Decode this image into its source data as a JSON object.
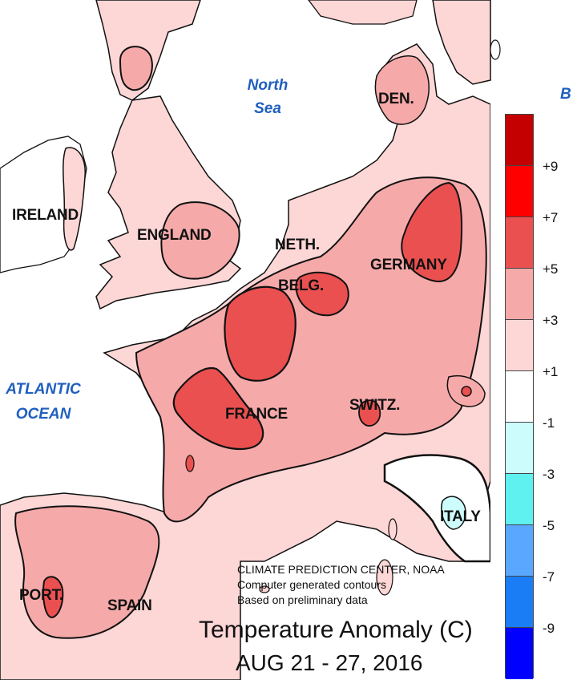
{
  "map": {
    "seas": {
      "north_sea_line1": "North",
      "north_sea_line2": "Sea",
      "atlantic_line1": "ATLANTIC",
      "atlantic_line2": "OCEAN",
      "corner_fragment": "B"
    },
    "countries": {
      "ireland": "IRELAND",
      "england": "ENGLAND",
      "neth": "NETH.",
      "belg": "BELG.",
      "germany": "GERMANY",
      "den": "DEN.",
      "france": "FRANCE",
      "switz": "SWITZ.",
      "italy": "ITALY",
      "port": "PORT.",
      "spain": "SPAIN"
    },
    "credit": {
      "line1": "CLIMATE PREDICTION CENTER, NOAA",
      "line2": "Computer generated contours",
      "line3": "Based on preliminary data"
    },
    "title": "Temperature Anomaly (C)",
    "date": "AUG 21 - 27, 2016",
    "colors": {
      "sea": "#ffffff",
      "anomaly_plus1_plus3": "#fdd6d6",
      "anomaly_plus3_plus5": "#f6a9a9",
      "anomaly_plus5_plus7": "#ea5050",
      "neutral": "#ffffff",
      "minus1_minus3": "#ccfcfc",
      "contour": "#111111"
    }
  },
  "legend": {
    "ticks": [
      "+9",
      "+7",
      "+5",
      "+3",
      "+1",
      "-1",
      "-3",
      "-5",
      "-7",
      "-9"
    ],
    "bins": [
      {
        "range": "> +9",
        "color": "#c40000"
      },
      {
        "range": "+7 to +9",
        "color": "#ff0000"
      },
      {
        "range": "+5 to +7",
        "color": "#ea5050"
      },
      {
        "range": "+3 to +5",
        "color": "#f6a9a9"
      },
      {
        "range": "+1 to +3",
        "color": "#fdd6d6"
      },
      {
        "range": "-1 to +1",
        "color": "#ffffff"
      },
      {
        "range": "-3 to -1",
        "color": "#ccfcfc"
      },
      {
        "range": "-5 to -3",
        "color": "#5ff0f0"
      },
      {
        "range": "-7 to -5",
        "color": "#5aa7ff"
      },
      {
        "range": "-9 to -7",
        "color": "#1a7df5"
      },
      {
        "range": "< -9",
        "color": "#0000ff"
      }
    ]
  }
}
